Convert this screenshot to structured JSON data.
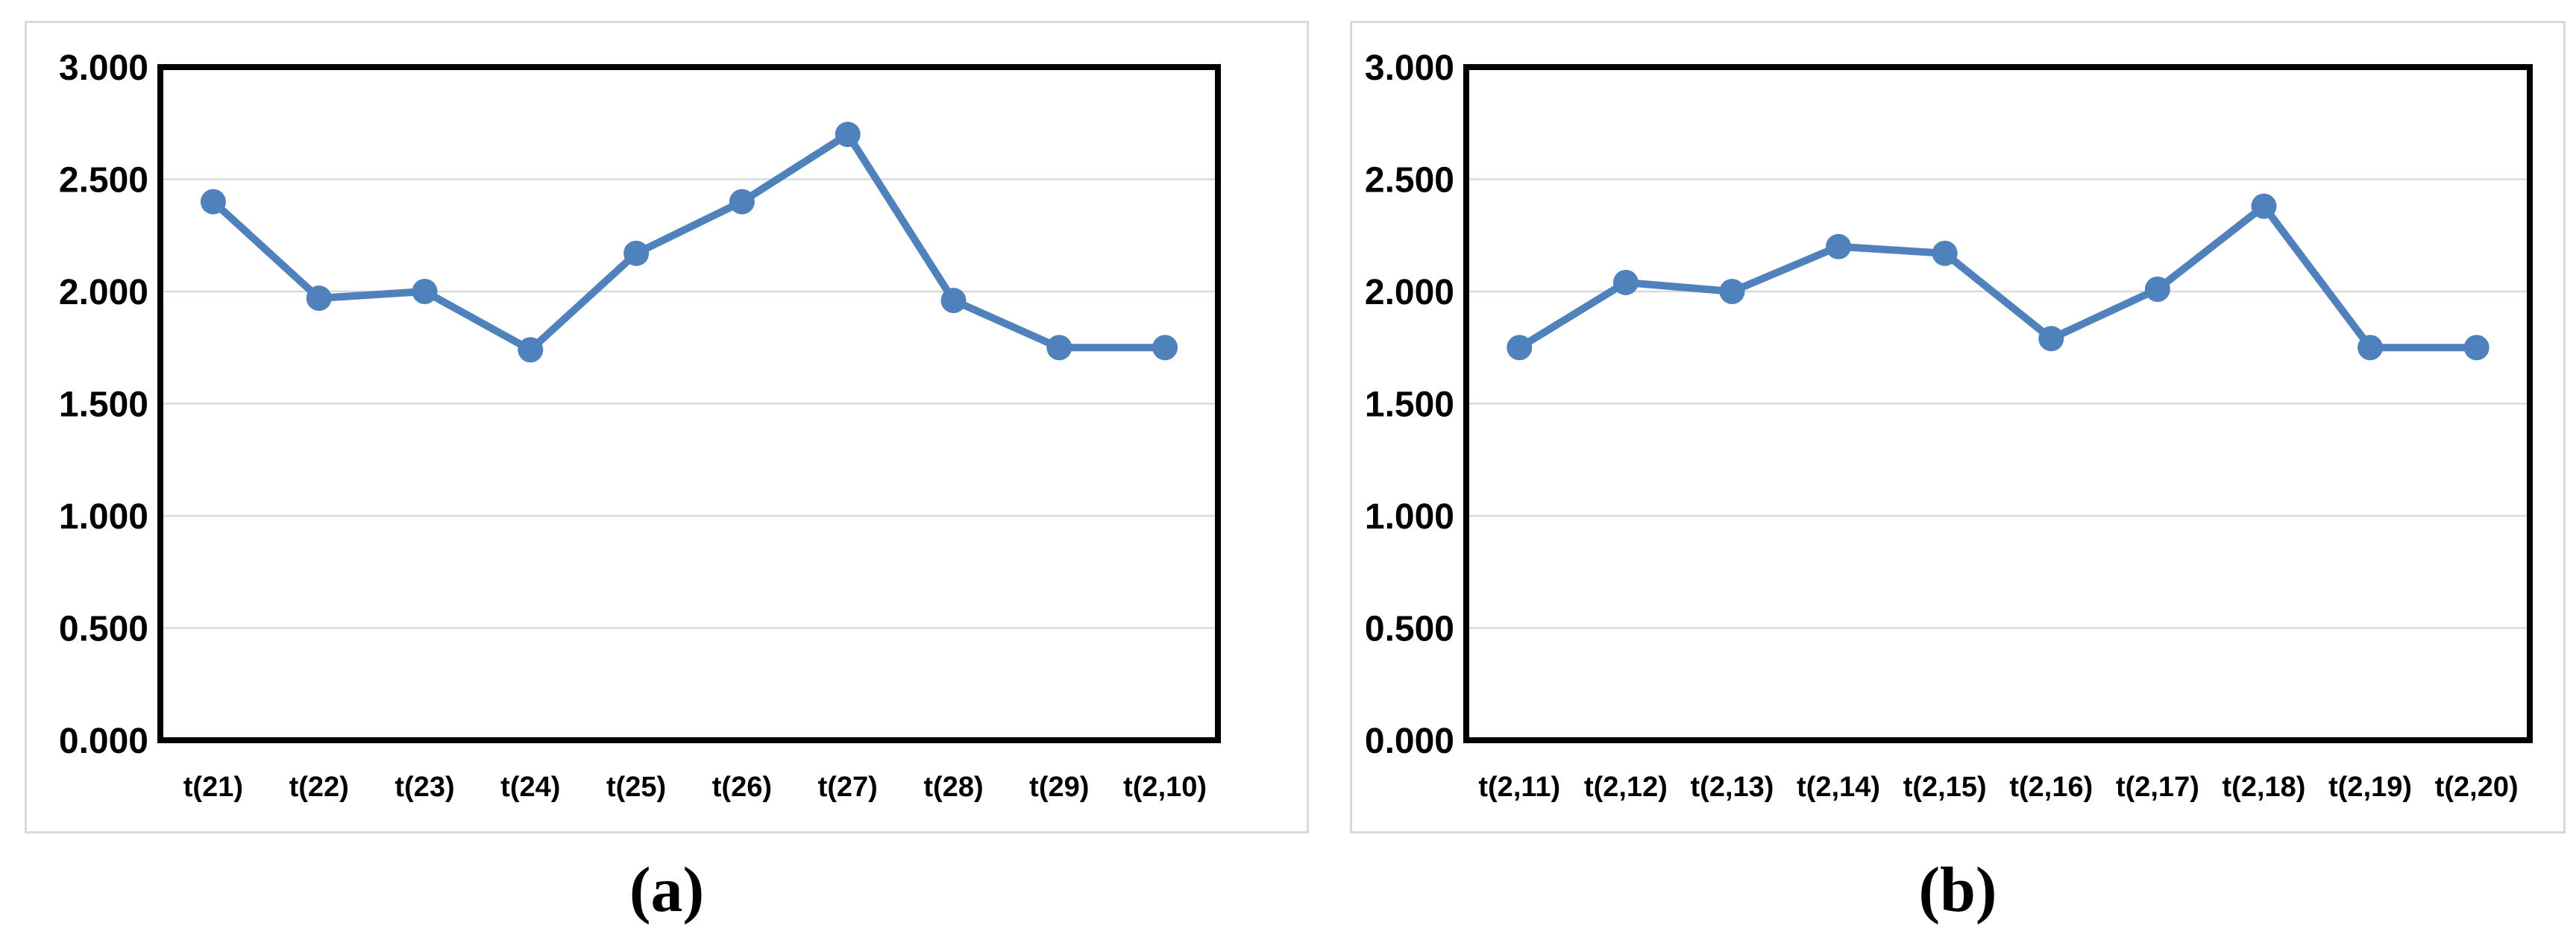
{
  "figure": {
    "caption_a": "(a)",
    "caption_b": "(b)"
  },
  "chart_data": [
    {
      "type": "line",
      "panel": "a",
      "title": "",
      "xlabel": "",
      "ylabel": "",
      "categories": [
        "t(21)",
        "t(22)",
        "t(23)",
        "t(24)",
        "t(25)",
        "t(26)",
        "t(27)",
        "t(28)",
        "t(29)",
        "t(2,10)"
      ],
      "values": [
        2.4,
        1.97,
        2.0,
        1.74,
        2.17,
        2.4,
        2.7,
        1.96,
        1.75,
        1.75
      ],
      "ylim": [
        0,
        3
      ],
      "yticks": [
        "3.000",
        "2.500",
        "2.000",
        "1.500",
        "1.000",
        "0.500",
        "0.000"
      ],
      "grid": true,
      "legend": "none",
      "line_color": "#4F81BD",
      "marker": "circle",
      "gridline_color": "#d9d9d9",
      "axis_color": "#000000"
    },
    {
      "type": "line",
      "panel": "b",
      "title": "",
      "xlabel": "",
      "ylabel": "",
      "categories": [
        "t(2,11)",
        "t(2,12)",
        "t(2,13)",
        "t(2,14)",
        "t(2,15)",
        "t(2,16)",
        "t(2,17)",
        "t(2,18)",
        "t(2,19)",
        "t(2,20)"
      ],
      "values": [
        1.75,
        2.04,
        2.0,
        2.2,
        2.17,
        1.79,
        2.01,
        2.38,
        1.75,
        1.75
      ],
      "ylim": [
        0,
        3
      ],
      "yticks": [
        "3.000",
        "2.500",
        "2.000",
        "1.500",
        "1.000",
        "0.500",
        "0.000"
      ],
      "grid": true,
      "legend": "none",
      "line_color": "#4F81BD",
      "marker": "circle",
      "gridline_color": "#d9d9d9",
      "axis_color": "#000000"
    }
  ]
}
